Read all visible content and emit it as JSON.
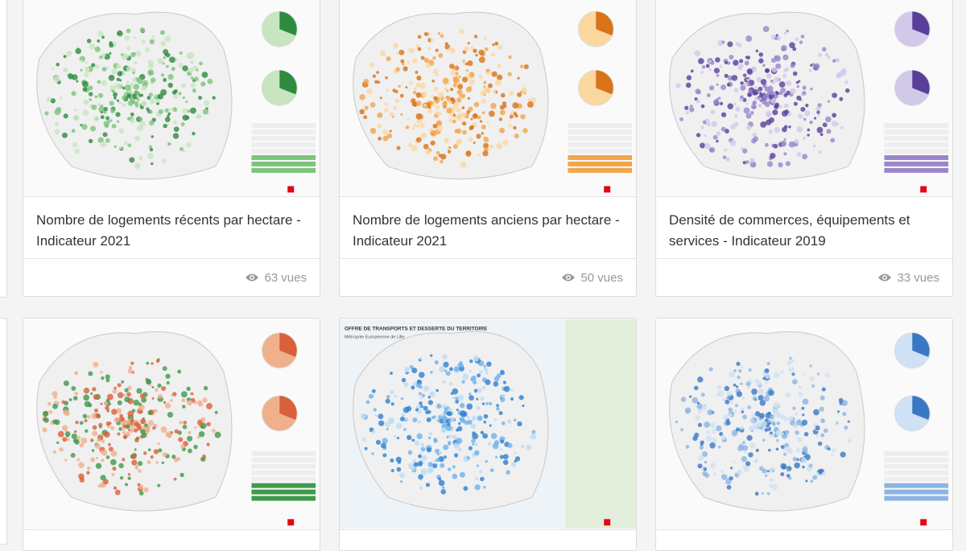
{
  "cards": [
    {
      "title": "Nombre de logements récents par hectare - Indicateur 2021",
      "views": "63 vues"
    },
    {
      "title": "Nombre de logements anciens par hectare - Indicateur 2021",
      "views": "50 vues"
    },
    {
      "title": "Densité de commerces, équipements et services - Indicateur 2019",
      "views": "33 vues"
    }
  ],
  "transport_map": {
    "title": "OFFRE DE TRANSPORTS ET DESSERTE DU TERRITOIRE",
    "subtitle": "Métropole Européenne de Lille"
  }
}
